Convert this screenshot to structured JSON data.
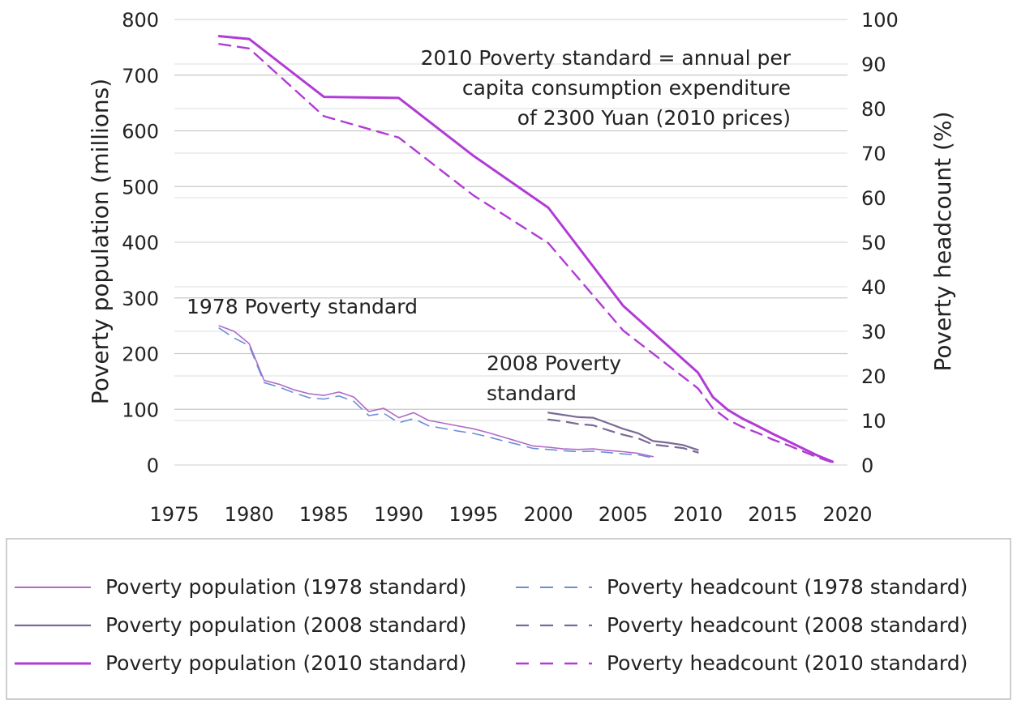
{
  "chart_data": {
    "type": "line",
    "title": "",
    "xlabel": "",
    "ylabel": "Poverty population (millions)",
    "y2label": "Poverty headcount (%)",
    "xlim": [
      1975,
      2020
    ],
    "ylim": [
      0,
      800
    ],
    "y2lim": [
      0,
      100
    ],
    "x_ticks": [
      1975,
      1980,
      1985,
      1990,
      1995,
      2000,
      2005,
      2010,
      2015,
      2020
    ],
    "y_ticks": [
      0,
      100,
      200,
      300,
      400,
      500,
      600,
      700,
      800
    ],
    "y2_ticks": [
      0,
      10,
      20,
      30,
      40,
      50,
      60,
      70,
      80,
      90,
      100
    ],
    "grid": "horizontal",
    "legend_position": "bottom",
    "annotations": [
      {
        "lines": [
          "2010 Poverty standard = annual per",
          "capita consumption expenditure",
          "of 2300 Yuan (2010 prices)"
        ]
      },
      {
        "lines": [
          "1978 Poverty standard"
        ]
      },
      {
        "lines": [
          "2008 Poverty",
          "standard"
        ]
      }
    ],
    "series": [
      {
        "name": "Poverty population (1978 standard)",
        "axis": "left",
        "color": "#b06ac8",
        "dash": "solid",
        "width": 1.6,
        "x": [
          1978,
          1979,
          1980,
          1981,
          1982,
          1983,
          1984,
          1985,
          1986,
          1987,
          1988,
          1989,
          1990,
          1991,
          1992,
          1993,
          1994,
          1995,
          1996,
          1997,
          1998,
          1999,
          2000,
          2001,
          2002,
          2003,
          2004,
          2005,
          2006,
          2007
        ],
        "y": [
          250,
          240,
          218,
          152,
          145,
          135,
          128,
          125,
          131,
          122,
          96,
          102,
          85,
          94,
          80,
          75,
          70,
          65,
          58,
          50,
          42,
          34,
          32,
          29,
          28,
          29,
          26,
          24,
          21,
          15
        ]
      },
      {
        "name": "Poverty headcount (1978 standard)",
        "axis": "right",
        "color": "#6b8ed6",
        "dash": "dashed",
        "width": 1.6,
        "x": [
          1978,
          1979,
          1980,
          1981,
          1982,
          1983,
          1984,
          1985,
          1986,
          1987,
          1988,
          1989,
          1990,
          1991,
          1992,
          1993,
          1994,
          1995,
          1996,
          1997,
          1998,
          1999,
          2000,
          2001,
          2002,
          2003,
          2004,
          2005,
          2006,
          2007
        ],
        "y": [
          30.7,
          28.5,
          26.8,
          18.5,
          17.5,
          16.2,
          15.1,
          14.8,
          15.5,
          14.3,
          11.1,
          11.6,
          9.5,
          10.4,
          8.8,
          8.2,
          7.6,
          7.1,
          6.3,
          5.4,
          4.6,
          3.7,
          3.5,
          3.2,
          3.0,
          3.1,
          2.8,
          2.5,
          2.3,
          1.6
        ]
      },
      {
        "name": "Poverty population (2008 standard)",
        "axis": "left",
        "color": "#7a6a96",
        "dash": "solid",
        "width": 2.2,
        "x": [
          2000,
          2001,
          2002,
          2003,
          2004,
          2005,
          2006,
          2007,
          2008,
          2009,
          2010
        ],
        "y": [
          94,
          90,
          86,
          85,
          75,
          65,
          57,
          43,
          40,
          36,
          27
        ]
      },
      {
        "name": "Poverty headcount (2008 standard)",
        "axis": "right",
        "color": "#7a6a96",
        "dash": "dashed",
        "width": 2.2,
        "x": [
          2000,
          2001,
          2002,
          2003,
          2004,
          2005,
          2006,
          2007,
          2008,
          2009,
          2010
        ],
        "y": [
          10.2,
          9.8,
          9.2,
          8.9,
          7.8,
          6.8,
          6.0,
          4.6,
          4.2,
          3.8,
          2.8
        ]
      },
      {
        "name": "Poverty population (2010 standard)",
        "axis": "left",
        "color": "#b23bd6",
        "dash": "solid",
        "width": 3,
        "x": [
          1978,
          1980,
          1985,
          1990,
          1995,
          2000,
          2005,
          2010,
          2011,
          2012,
          2013,
          2014,
          2015,
          2016,
          2017,
          2018,
          2019
        ],
        "y": [
          770,
          765,
          661,
          659,
          555,
          462,
          286,
          166,
          122,
          99,
          83,
          70,
          56,
          43,
          30,
          17,
          6
        ]
      },
      {
        "name": "Poverty headcount (2010 standard)",
        "axis": "right",
        "color": "#b23bd6",
        "dash": "dashed",
        "width": 2.4,
        "x": [
          1978,
          1980,
          1985,
          1990,
          1995,
          2000,
          2005,
          2010,
          2011,
          2012,
          2013,
          2014,
          2015,
          2016,
          2017,
          2018,
          2019
        ],
        "y": [
          94.5,
          93.5,
          78.3,
          73.5,
          60.5,
          49.8,
          30.2,
          17.2,
          12.7,
          10.2,
          8.5,
          7.2,
          5.7,
          4.5,
          3.1,
          1.7,
          0.6
        ]
      }
    ]
  }
}
